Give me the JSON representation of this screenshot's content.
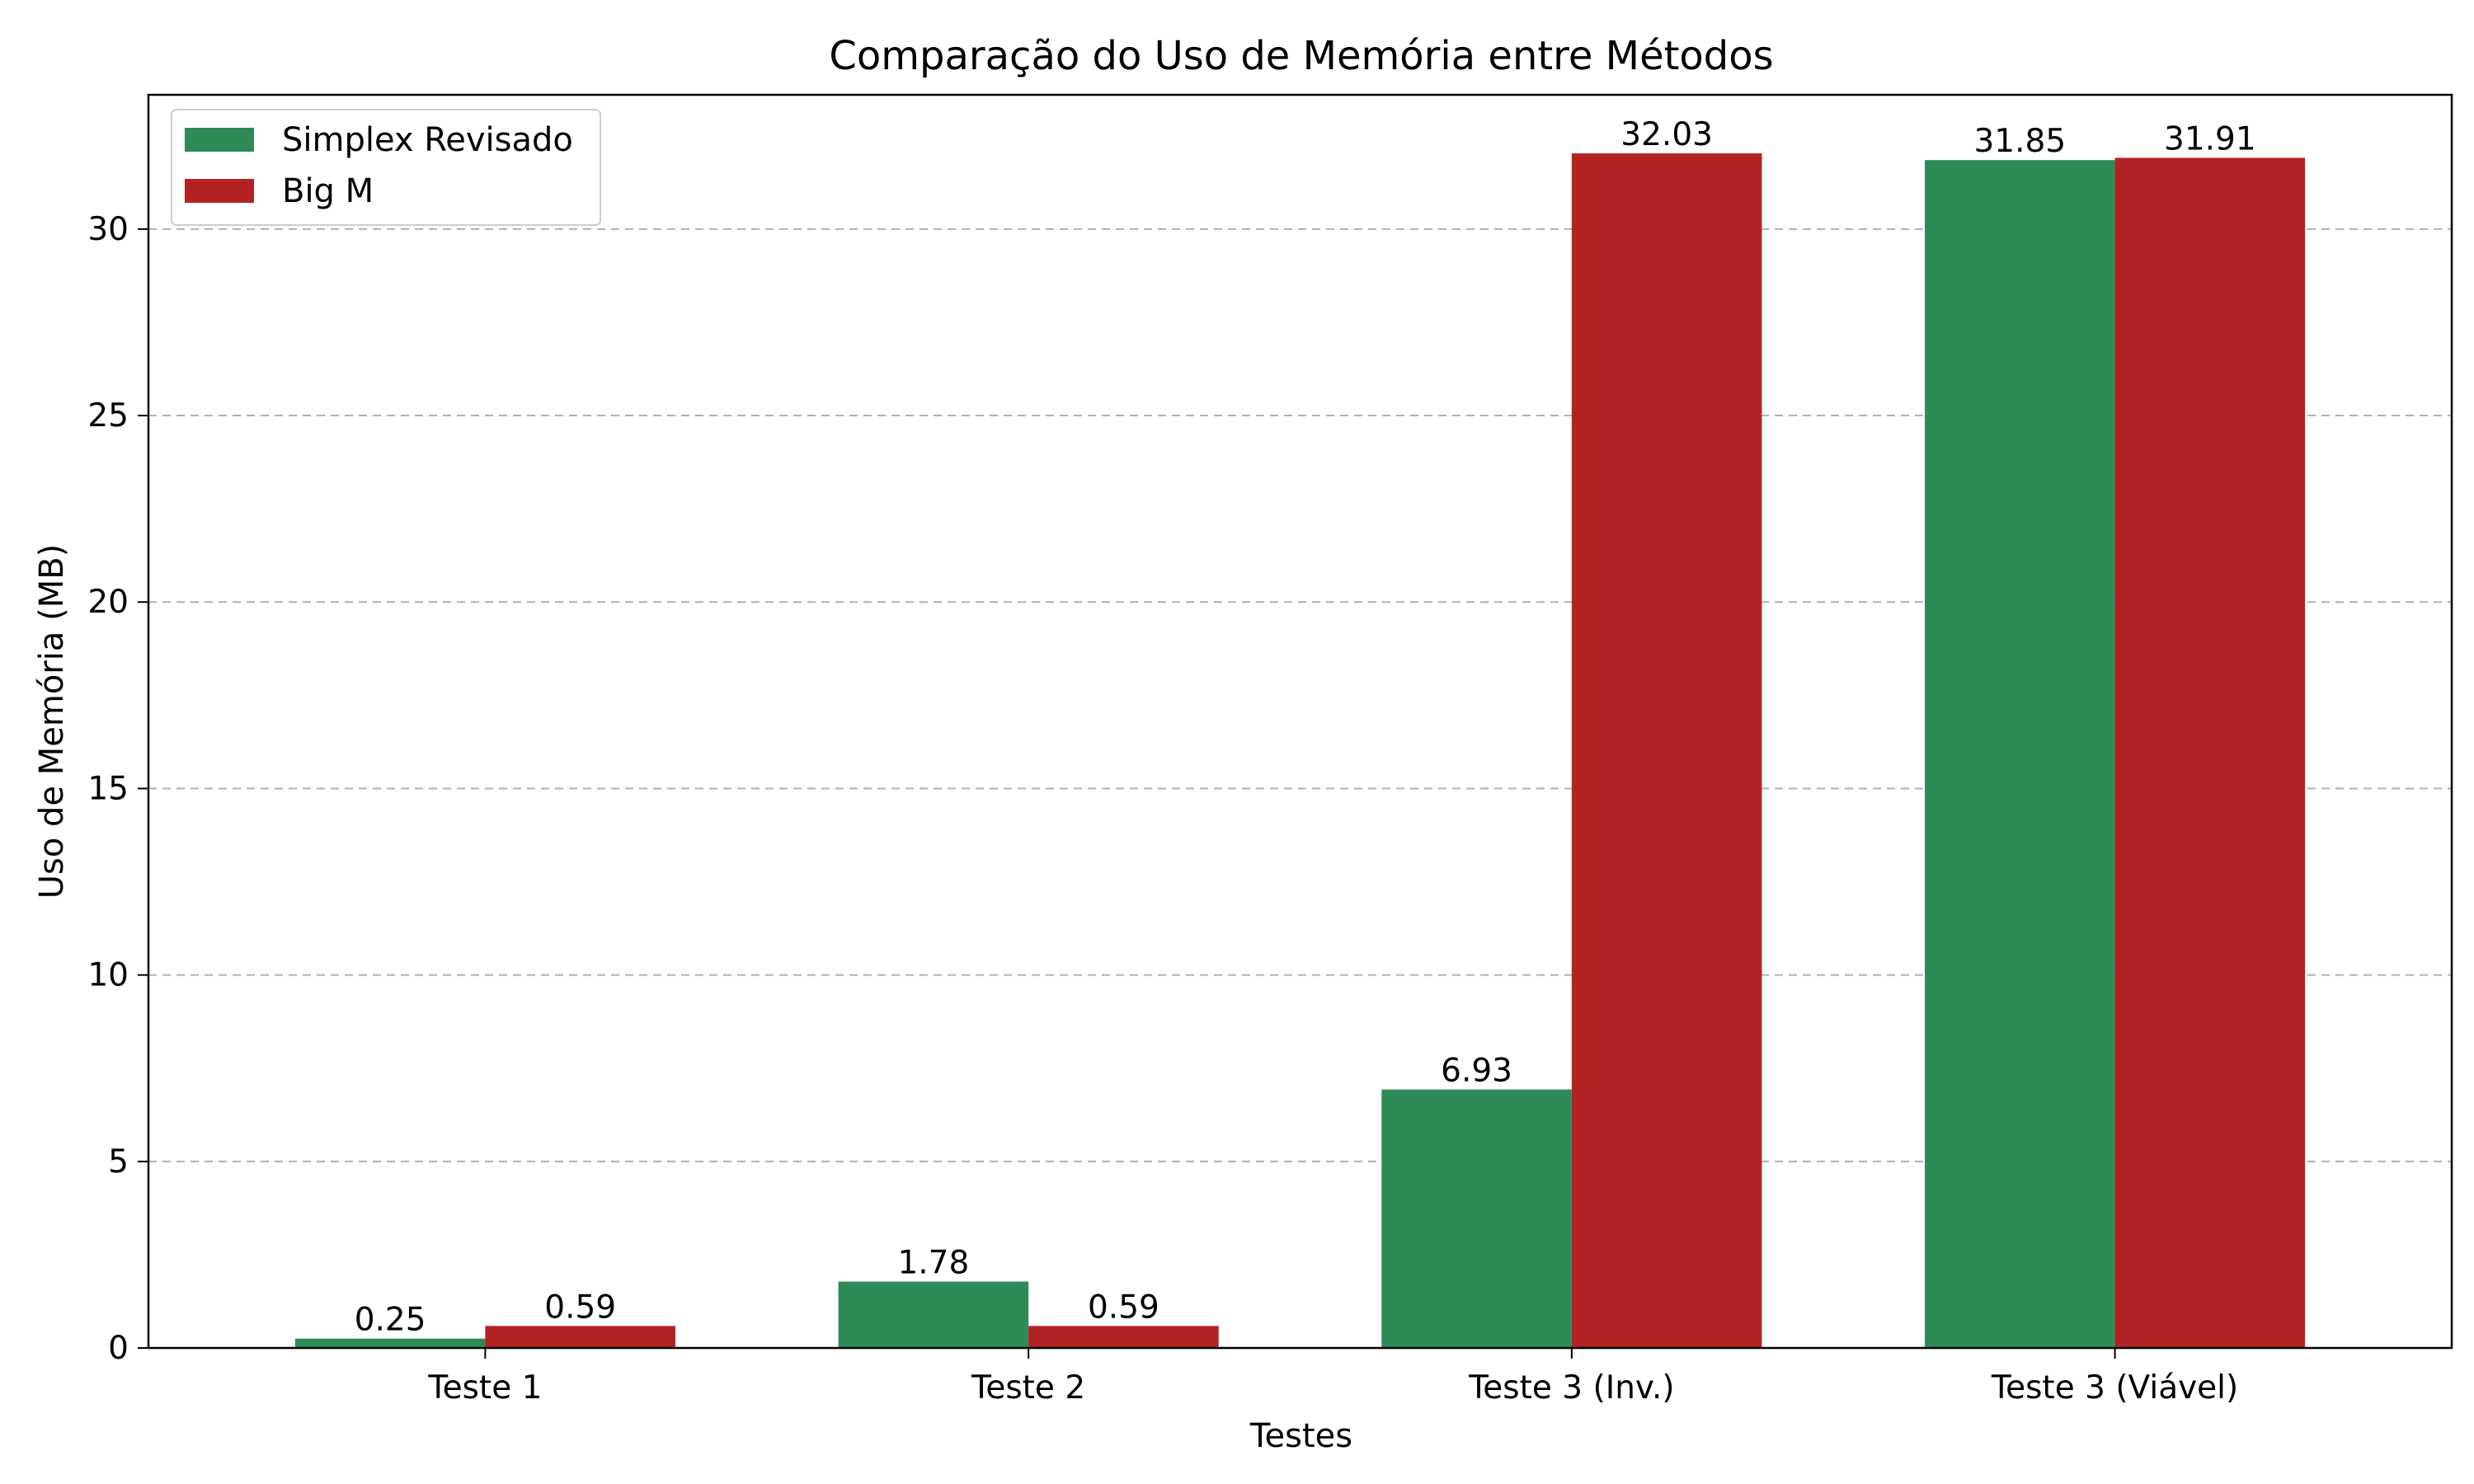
{
  "chart_data": {
    "type": "bar",
    "title": "Comparação do Uso de Memória entre Métodos",
    "xlabel": "Testes",
    "ylabel": "Uso de Memória (MB)",
    "categories": [
      "Teste 1",
      "Teste 2",
      "Teste 3 (Inv.)",
      "Teste 3 (Viável)"
    ],
    "series": [
      {
        "name": "Simplex Revisado",
        "color": "#2e8b57",
        "values": [
          0.25,
          1.78,
          6.93,
          31.85
        ],
        "labels": [
          "0.25",
          "1.78",
          "6.93",
          "31.85"
        ]
      },
      {
        "name": "Big M",
        "color": "#b22222",
        "values": [
          0.59,
          0.59,
          32.03,
          31.91
        ],
        "labels": [
          "0.59",
          "0.59",
          "32.03",
          "31.91"
        ]
      }
    ],
    "ylim": [
      0,
      33.6
    ],
    "yticks": [
      0,
      5,
      10,
      15,
      20,
      25,
      30
    ],
    "ytick_labels": [
      "0",
      "5",
      "10",
      "15",
      "20",
      "25",
      "30"
    ],
    "grid": "y dashed",
    "legend_position": "top-left"
  }
}
